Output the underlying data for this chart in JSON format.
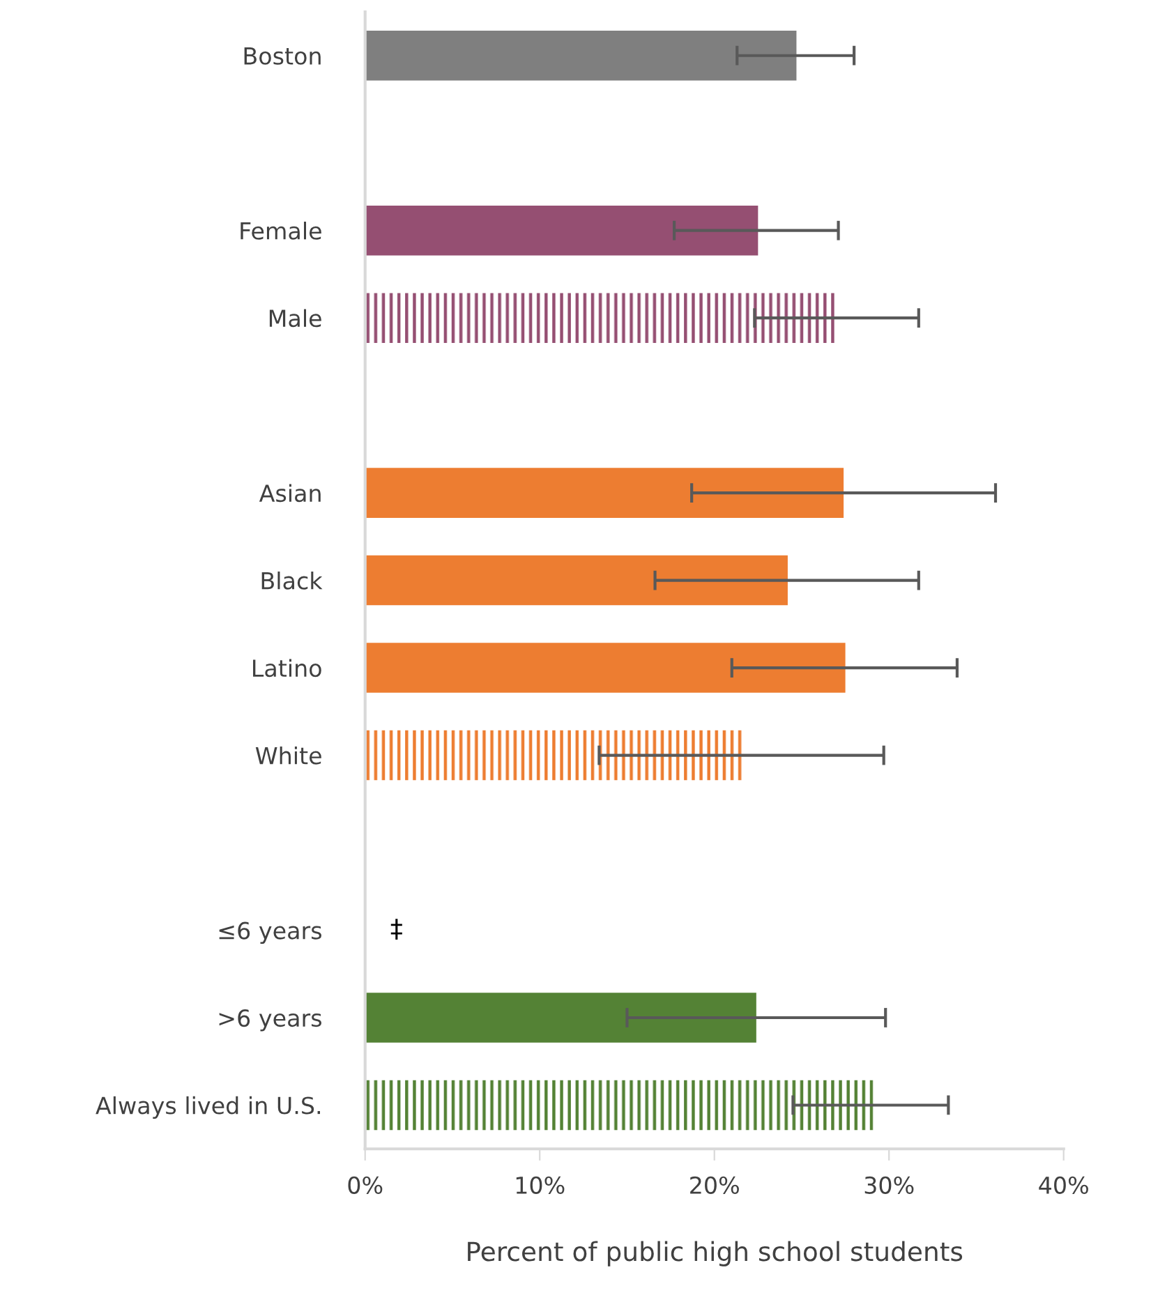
{
  "chart_data": {
    "type": "bar",
    "orientation": "horizontal",
    "xlabel": "Percent of public high school students",
    "categories": [
      "Boston",
      null,
      "Female",
      "Male",
      null,
      "Asian",
      "Black",
      "Latino",
      "White",
      null,
      "≤6 years",
      ">6 years",
      "Always lived in U.S."
    ],
    "series": [
      {
        "colors": [
          "#7f7f7f",
          null,
          "#954f72",
          null,
          null,
          "#ed7d31",
          "#ed7d31",
          "#ed7d31",
          null,
          null,
          null,
          "#548235",
          null
        ],
        "values": [
          24.7,
          null,
          22.5,
          null,
          null,
          27.4,
          24.2,
          27.5,
          null,
          null,
          null,
          22.4,
          null
        ],
        "errors": [
          [
            21.3,
            28.0
          ],
          null,
          [
            17.7,
            27.1
          ],
          null,
          null,
          [
            18.7,
            36.1
          ],
          [
            16.6,
            31.7
          ],
          [
            21.0,
            33.9
          ],
          null,
          null,
          null,
          [
            15.0,
            29.8
          ],
          null
        ]
      },
      {
        "colors": [
          null,
          null,
          null,
          "#954f72",
          null,
          null,
          null,
          null,
          "#ed7d31",
          null,
          null,
          null,
          "#548235"
        ],
        "values": [
          null,
          null,
          null,
          27.0,
          null,
          null,
          null,
          null,
          21.6,
          null,
          null,
          null,
          29.1
        ],
        "errors": [
          null,
          null,
          null,
          [
            22.3,
            31.7
          ],
          null,
          null,
          null,
          null,
          [
            13.4,
            29.7
          ],
          null,
          null,
          null,
          [
            24.5,
            33.4
          ]
        ]
      }
    ],
    "annotations": [
      "‡"
    ],
    "xlim": [
      0,
      40
    ],
    "xticks": [
      {
        "value": 0,
        "label": "0%"
      },
      {
        "value": 10,
        "label": "10%"
      },
      {
        "value": 20,
        "label": "20%"
      },
      {
        "value": 30,
        "label": "30%"
      },
      {
        "value": 40,
        "label": "40%"
      }
    ],
    "grid": false
  }
}
